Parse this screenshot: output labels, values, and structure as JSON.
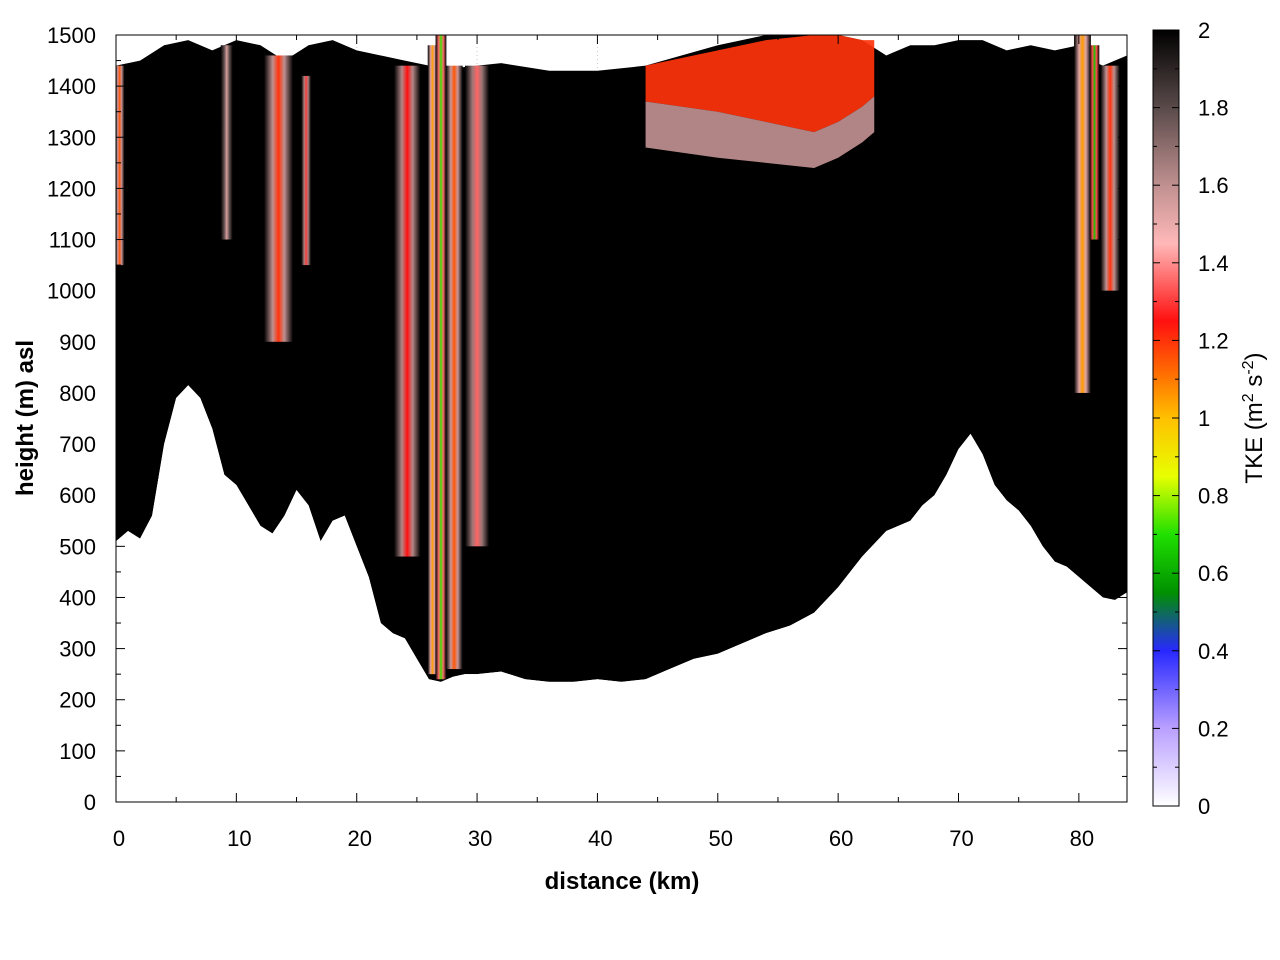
{
  "chart_data": {
    "type": "heatmap",
    "xlabel": "distance (km)",
    "ylabel": "height (m) asl",
    "xlim": [
      0,
      84
    ],
    "ylim": [
      0,
      1500
    ],
    "x_ticks": [
      "0",
      "10",
      "20",
      "30",
      "40",
      "50",
      "60",
      "70",
      "80"
    ],
    "y_ticks": [
      "0",
      "100",
      "200",
      "300",
      "400",
      "500",
      "600",
      "700",
      "800",
      "900",
      "1000",
      "1100",
      "1200",
      "1300",
      "1400",
      "1500"
    ],
    "grid": true,
    "colorbar": {
      "label_main": "TKE (m",
      "label_sup1": "2",
      "label_mid": " s",
      "label_sup2": "-2",
      "label_end": ")",
      "range": [
        0,
        2
      ],
      "ticks": [
        "0",
        "0.2",
        "0.4",
        "0.6",
        "0.8",
        "1",
        "1.2",
        "1.4",
        "1.6",
        "1.8",
        "2"
      ],
      "stops": [
        {
          "value": 0.0,
          "color": "#ffffff"
        },
        {
          "value": 0.2,
          "color": "#b9a0ff"
        },
        {
          "value": 0.4,
          "color": "#2828ff"
        },
        {
          "value": 0.55,
          "color": "#009000"
        },
        {
          "value": 0.7,
          "color": "#20e000"
        },
        {
          "value": 0.85,
          "color": "#e8ff00"
        },
        {
          "value": 1.0,
          "color": "#ffc000"
        },
        {
          "value": 1.1,
          "color": "#ff7800"
        },
        {
          "value": 1.25,
          "color": "#ff1010"
        },
        {
          "value": 1.45,
          "color": "#ffb8b8"
        },
        {
          "value": 1.6,
          "color": "#c09090"
        },
        {
          "value": 1.8,
          "color": "#5a4a4a"
        },
        {
          "value": 2.0,
          "color": "#000000"
        }
      ]
    },
    "terrain": {
      "x": [
        0,
        1,
        2,
        3,
        4,
        5,
        6,
        7,
        8,
        9,
        10,
        11,
        12,
        13,
        14,
        15,
        16,
        17,
        18,
        19,
        20,
        21,
        22,
        23,
        24,
        25,
        26,
        27,
        28,
        29,
        30,
        32,
        34,
        36,
        38,
        40,
        42,
        44,
        46,
        48,
        50,
        52,
        54,
        56,
        58,
        60,
        62,
        64,
        66,
        67,
        68,
        69,
        70,
        71,
        72,
        73,
        74,
        75,
        76,
        77,
        78,
        79,
        80,
        81,
        82,
        83,
        84
      ],
      "y": [
        510,
        530,
        515,
        560,
        700,
        790,
        815,
        790,
        730,
        640,
        620,
        580,
        540,
        525,
        560,
        610,
        580,
        510,
        550,
        560,
        500,
        440,
        350,
        330,
        320,
        280,
        240,
        235,
        245,
        250,
        250,
        255,
        240,
        235,
        235,
        240,
        235,
        240,
        260,
        280,
        290,
        310,
        330,
        345,
        370,
        420,
        480,
        530,
        550,
        580,
        600,
        640,
        690,
        720,
        680,
        620,
        590,
        570,
        540,
        500,
        470,
        460,
        440,
        420,
        400,
        395,
        410
      ]
    },
    "tke_columns": [
      {
        "x_center": 0.3,
        "width": 0.8,
        "bottom": 1050,
        "top": 1440,
        "peak": 1.15
      },
      {
        "x_center": 9.2,
        "width": 1.0,
        "bottom": 1100,
        "top": 1480,
        "peak": 1.55
      },
      {
        "x_center": 13.5,
        "width": 2.4,
        "bottom": 900,
        "top": 1460,
        "peak": 1.2
      },
      {
        "x_center": 15.8,
        "width": 0.8,
        "bottom": 1050,
        "top": 1420,
        "peak": 1.3
      },
      {
        "x_center": 24.2,
        "width": 2.2,
        "bottom": 480,
        "top": 1440,
        "peak": 1.25
      },
      {
        "x_center": 26.3,
        "width": 0.8,
        "bottom": 250,
        "top": 1480,
        "peak": 1.05
      },
      {
        "x_center": 27.0,
        "width": 0.9,
        "bottom": 240,
        "top": 1500,
        "peak": 0.72
      },
      {
        "x_center": 28.1,
        "width": 1.4,
        "bottom": 260,
        "top": 1440,
        "peak": 1.15
      },
      {
        "x_center": 30.0,
        "width": 2.0,
        "bottom": 500,
        "top": 1440,
        "peak": 1.35
      },
      {
        "x_center": 80.3,
        "width": 1.4,
        "bottom": 800,
        "top": 1500,
        "peak": 1.05
      },
      {
        "x_center": 81.3,
        "width": 0.8,
        "bottom": 1100,
        "top": 1480,
        "peak": 0.65
      },
      {
        "x_center": 82.6,
        "width": 1.6,
        "bottom": 1000,
        "top": 1440,
        "peak": 1.2
      }
    ],
    "tke_bands": [
      {
        "x": [
          44,
          50,
          54,
          58,
          60,
          62,
          63
        ],
        "bottom": [
          1370,
          1350,
          1330,
          1310,
          1330,
          1360,
          1380
        ],
        "top": [
          1440,
          1470,
          1490,
          1500,
          1500,
          1490,
          1490
        ],
        "peak": 1.2
      },
      {
        "x": [
          44,
          50,
          54,
          58,
          60,
          62,
          63
        ],
        "bottom": [
          1280,
          1260,
          1250,
          1240,
          1260,
          1290,
          1310
        ],
        "top": [
          1370,
          1350,
          1330,
          1310,
          1330,
          1360,
          1380
        ],
        "peak": 1.6
      }
    ]
  }
}
